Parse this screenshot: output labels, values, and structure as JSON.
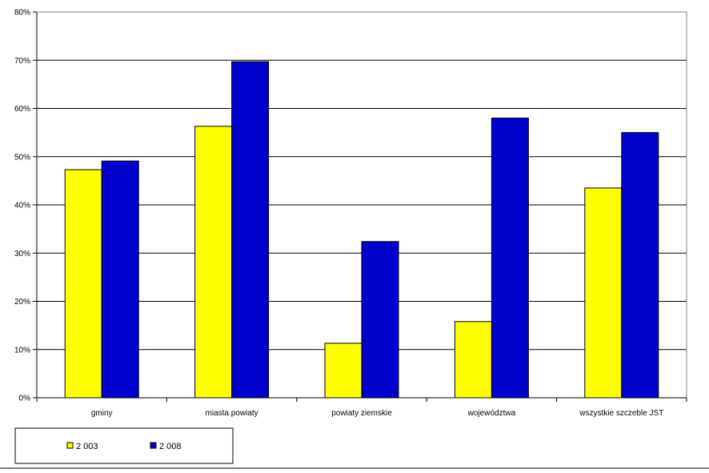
{
  "chart_data": {
    "type": "bar",
    "categories": [
      "gminy",
      "miasta powiaty",
      "powiaty ziemskie",
      "województwa",
      "wszystkie szczeble JST"
    ],
    "series": [
      {
        "name": "2 003",
        "color": "#ffff00",
        "values": [
          47.3,
          56.3,
          11.3,
          15.8,
          43.5
        ]
      },
      {
        "name": "2 008",
        "color": "#0000cc",
        "values": [
          49.1,
          69.7,
          32.4,
          58.0,
          55.0
        ]
      }
    ],
    "ylim": [
      0,
      80
    ],
    "yticks": [
      0,
      10,
      20,
      30,
      40,
      50,
      60,
      70,
      80
    ],
    "ytick_labels": [
      "0%",
      "10%",
      "20%",
      "30%",
      "40%",
      "50%",
      "60%",
      "70%",
      "80%"
    ],
    "grid": "horizontal",
    "legend_placement": "bottom-left",
    "title": "",
    "xlabel": "",
    "ylabel": ""
  }
}
